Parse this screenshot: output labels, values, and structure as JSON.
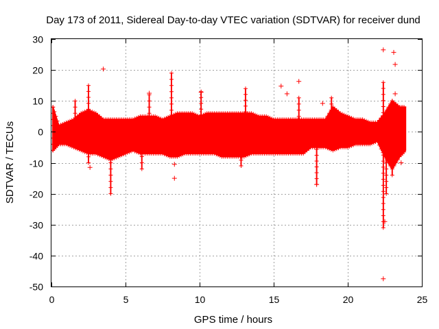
{
  "chart_data": {
    "type": "scatter",
    "title": "Day 173 of 2011, Sidereal Day-to-day VTEC variation (SDTVAR) for receiver dund",
    "xlabel": "GPS time / hours",
    "ylabel": "SDTVAR / TECUs",
    "xlim": [
      0,
      25
    ],
    "ylim": [
      -50,
      30
    ],
    "xticks": [
      0,
      5,
      10,
      15,
      20,
      25
    ],
    "yticks": [
      30,
      20,
      10,
      0,
      -10,
      -20,
      -30,
      -40,
      -50
    ],
    "grid": true,
    "marker": "+",
    "color": "#ff0000",
    "band": {
      "description": "dense point cloud envelope (upper and lower bounds of bulk of points)",
      "x": [
        0.1,
        0.5,
        1.0,
        1.5,
        2.0,
        2.5,
        3.0,
        3.5,
        4.0,
        4.5,
        5.0,
        5.5,
        6.0,
        6.5,
        7.0,
        7.5,
        8.0,
        8.5,
        9.0,
        9.5,
        10.0,
        10.5,
        11.0,
        11.5,
        12.0,
        12.5,
        13.0,
        13.5,
        14.0,
        14.5,
        15.0,
        15.5,
        16.0,
        16.5,
        17.0,
        17.5,
        18.0,
        18.5,
        19.0,
        19.5,
        20.0,
        20.5,
        21.0,
        21.5,
        22.0,
        22.5,
        23.0,
        23.5,
        23.9
      ],
      "upper": [
        8,
        2,
        3,
        4,
        6,
        7,
        6,
        4,
        4,
        4,
        4,
        4,
        5,
        5,
        5,
        4,
        5,
        6,
        6,
        6,
        5,
        6,
        6,
        6,
        6,
        6,
        6,
        6,
        5,
        5,
        4,
        4,
        4,
        4,
        4,
        4,
        4,
        4,
        8,
        6,
        5,
        4,
        4,
        3,
        3,
        6,
        10,
        8,
        8
      ],
      "lower": [
        -6,
        -4,
        -4,
        -5,
        -6,
        -7,
        -7,
        -8,
        -9,
        -8,
        -7,
        -6,
        -7,
        -7,
        -7,
        -7,
        -8,
        -8,
        -7,
        -7,
        -7,
        -7,
        -7,
        -8,
        -8,
        -8,
        -8,
        -7,
        -7,
        -7,
        -7,
        -7,
        -7,
        -7,
        -7,
        -5,
        -5,
        -5,
        -6,
        -5,
        -5,
        -4,
        -4,
        -4,
        -3,
        -8,
        -12,
        -8,
        -6
      ]
    },
    "spikes": [
      {
        "x": 0.1,
        "y": [
          -6,
          8
        ]
      },
      {
        "x": 1.6,
        "y": [
          -2,
          10
        ]
      },
      {
        "x": 2.5,
        "y": [
          -10,
          15
        ]
      },
      {
        "x": 4.0,
        "y": [
          -20,
          2
        ]
      },
      {
        "x": 6.1,
        "y": [
          -12,
          2
        ]
      },
      {
        "x": 6.6,
        "y": [
          -4,
          12
        ]
      },
      {
        "x": 8.1,
        "y": [
          -3,
          19
        ]
      },
      {
        "x": 10.1,
        "y": [
          -4,
          13
        ]
      },
      {
        "x": 12.8,
        "y": [
          -11,
          2
        ]
      },
      {
        "x": 13.1,
        "y": [
          -3,
          14
        ]
      },
      {
        "x": 16.7,
        "y": [
          -3,
          11
        ]
      },
      {
        "x": 17.9,
        "y": [
          -17,
          0
        ]
      },
      {
        "x": 18.9,
        "y": [
          -3,
          11
        ]
      },
      {
        "x": 22.4,
        "y": [
          -31,
          16
        ]
      },
      {
        "x": 22.6,
        "y": [
          -20,
          4
        ]
      },
      {
        "x": 23.0,
        "y": [
          -14,
          10
        ]
      }
    ],
    "outliers": [
      {
        "x": 2.6,
        "y": -11.5
      },
      {
        "x": 3.5,
        "y": 20.3
      },
      {
        "x": 6.6,
        "y": 12.5
      },
      {
        "x": 8.3,
        "y": -10.5
      },
      {
        "x": 8.3,
        "y": -15
      },
      {
        "x": 10.1,
        "y": 12.8
      },
      {
        "x": 15.5,
        "y": 14.8
      },
      {
        "x": 15.9,
        "y": 12.3
      },
      {
        "x": 16.7,
        "y": 16.3
      },
      {
        "x": 17.9,
        "y": -17
      },
      {
        "x": 18.3,
        "y": 9.2
      },
      {
        "x": 22.4,
        "y": 26.5
      },
      {
        "x": 22.5,
        "y": -29
      },
      {
        "x": 22.4,
        "y": -47.5
      },
      {
        "x": 23.1,
        "y": 25.7
      },
      {
        "x": 23.2,
        "y": 21.8
      },
      {
        "x": 23.2,
        "y": 12.3
      },
      {
        "x": 23.6,
        "y": -10
      }
    ]
  }
}
